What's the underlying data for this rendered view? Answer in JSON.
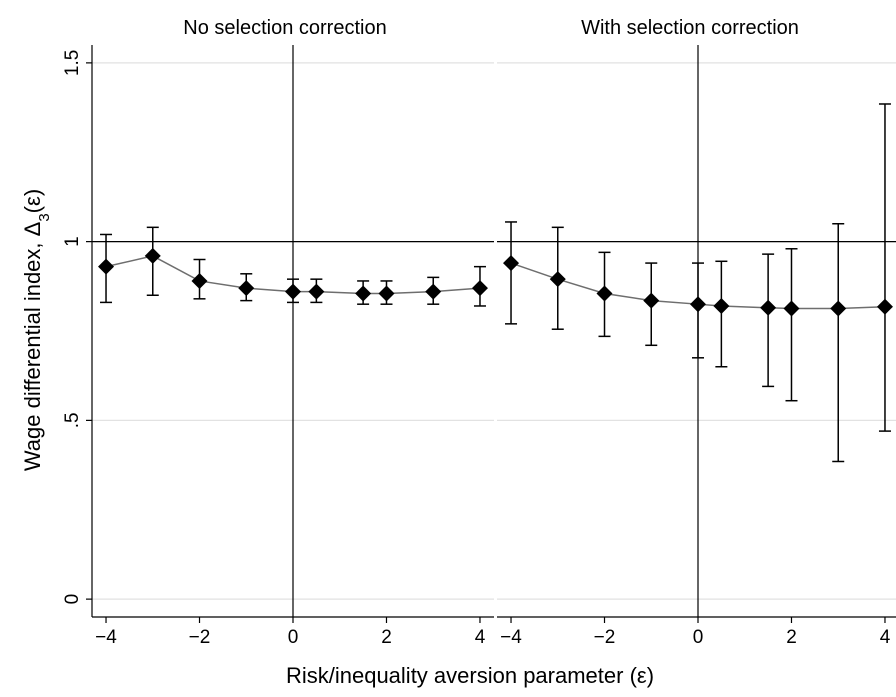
{
  "chart_data": [
    {
      "type": "scatter",
      "title": "No selection correction",
      "xlabel": "Risk/inequality aversion parameter (ε)",
      "ylabel": "Wage differential index, Δ3(ε)",
      "xlim": [
        -4.3,
        4.3
      ],
      "ylim": [
        -0.05,
        1.55
      ],
      "x_ticks": [
        -4,
        -2,
        0,
        2,
        4
      ],
      "x_tick_labels": [
        "−4",
        "−2",
        "0",
        "2",
        "4"
      ],
      "y_ticks": [
        0,
        0.5,
        1,
        1.5
      ],
      "y_tick_labels": [
        "0",
        ".5",
        "1",
        "1.5"
      ],
      "grid": true,
      "reference_lines": {
        "x": 0,
        "y": 1
      },
      "x": [
        -4,
        -3,
        -2,
        -1,
        0,
        0.5,
        1.5,
        2,
        3,
        4
      ],
      "y": [
        0.93,
        0.96,
        0.89,
        0.87,
        0.86,
        0.86,
        0.855,
        0.855,
        0.86,
        0.87
      ],
      "lower": [
        0.83,
        0.85,
        0.84,
        0.835,
        0.83,
        0.83,
        0.825,
        0.825,
        0.825,
        0.82
      ],
      "upper": [
        1.02,
        1.04,
        0.95,
        0.91,
        0.895,
        0.895,
        0.89,
        0.89,
        0.9,
        0.93
      ]
    },
    {
      "type": "scatter",
      "title": "With selection correction",
      "xlabel": "Risk/inequality aversion parameter (ε)",
      "ylabel": "",
      "xlim": [
        -4.3,
        4.3
      ],
      "ylim": [
        -0.05,
        1.55
      ],
      "x_ticks": [
        -4,
        -2,
        0,
        2,
        4
      ],
      "x_tick_labels": [
        "−4",
        "−2",
        "0",
        "2",
        "4"
      ],
      "y_ticks": [
        0,
        0.5,
        1,
        1.5
      ],
      "grid": true,
      "reference_lines": {
        "x": 0,
        "y": 1
      },
      "x": [
        -4,
        -3,
        -2,
        -1,
        0,
        0.5,
        1.5,
        2,
        3,
        4
      ],
      "y": [
        0.94,
        0.895,
        0.855,
        0.835,
        0.825,
        0.82,
        0.815,
        0.813,
        0.813,
        0.818
      ],
      "lower": [
        0.77,
        0.755,
        0.735,
        0.71,
        0.675,
        0.65,
        0.595,
        0.555,
        0.385,
        0.47
      ],
      "upper": [
        1.055,
        1.04,
        0.97,
        0.94,
        0.94,
        0.945,
        0.965,
        0.98,
        1.05,
        1.385
      ]
    }
  ],
  "shared": {
    "xlabel": "Risk/inequality aversion parameter (ε)",
    "ylabel_main": "Wage differential index, Δ",
    "ylabel_sub": "3",
    "ylabel_tail": "(ε)"
  }
}
